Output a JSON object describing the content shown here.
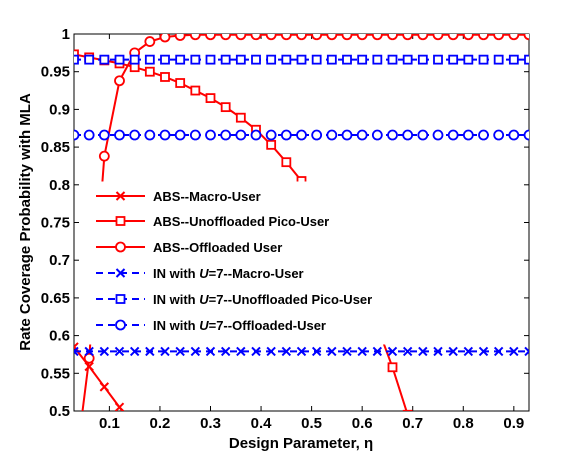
{
  "chart_data": {
    "type": "line",
    "title": "",
    "xlabel": "Design Parameter, η",
    "ylabel": "Rate Coverage Probability with MLA",
    "xlim": [
      0.03,
      0.93
    ],
    "ylim": [
      0.5,
      1.0
    ],
    "xticks": [
      "0.1",
      "0.2",
      "0.3",
      "0.4",
      "0.5",
      "0.6",
      "0.7",
      "0.8",
      "0.9"
    ],
    "yticks": [
      "0.5",
      "0.55",
      "0.6",
      "0.65",
      "0.7",
      "0.75",
      "0.8",
      "0.85",
      "0.9",
      "0.95",
      "1"
    ],
    "grid": false,
    "legend_position": "left",
    "colors": {
      "abs": "#ff0000",
      "in": "#0000ff"
    },
    "x_markers": [
      0.03,
      0.06,
      0.09,
      0.12,
      0.15,
      0.18,
      0.21,
      0.24,
      0.27,
      0.3,
      0.33,
      0.36,
      0.39,
      0.42,
      0.45,
      0.48,
      0.51,
      0.54,
      0.57,
      0.6,
      0.63,
      0.66,
      0.69,
      0.72,
      0.75,
      0.78,
      0.81,
      0.84,
      0.87,
      0.9,
      0.93
    ],
    "series": [
      {
        "name": "ABS--Macro-User",
        "color": "#ff0000",
        "line": "solid",
        "marker": "x",
        "x": [
          0.03,
          0.06,
          0.09,
          0.12,
          0.15
        ],
        "y": [
          0.585,
          0.559,
          0.532,
          0.505,
          0.478
        ]
      },
      {
        "name": "ABS--Unoffloaded Pico-User",
        "color": "#ff0000",
        "line": "solid",
        "marker": "square",
        "x": [
          0.03,
          0.06,
          0.09,
          0.12,
          0.15,
          0.18,
          0.21,
          0.24,
          0.27,
          0.3,
          0.33,
          0.36,
          0.39,
          0.42,
          0.45,
          0.48,
          0.51,
          0.54,
          0.57,
          0.6,
          0.63,
          0.66,
          0.69
        ],
        "y": [
          0.973,
          0.969,
          0.965,
          0.961,
          0.956,
          0.95,
          0.943,
          0.935,
          0.925,
          0.915,
          0.903,
          0.889,
          0.873,
          0.853,
          0.83,
          0.805,
          0.775,
          0.742,
          0.704,
          0.661,
          0.612,
          0.558,
          0.495
        ]
      },
      {
        "name": "ABS--Offloaded User",
        "color": "#ff0000",
        "line": "solid",
        "marker": "circle",
        "x": [
          0.045,
          0.06,
          0.09,
          0.12,
          0.15,
          0.18,
          0.21,
          0.24,
          0.27,
          0.3,
          0.33,
          0.36,
          0.39,
          0.42,
          0.45,
          0.48,
          0.51,
          0.54,
          0.57,
          0.6,
          0.63,
          0.66,
          0.69,
          0.72,
          0.75,
          0.78,
          0.81,
          0.84,
          0.87,
          0.9,
          0.93
        ],
        "y": [
          0.49,
          0.57,
          0.838,
          0.938,
          0.975,
          0.99,
          0.996,
          0.998,
          0.999,
          0.999,
          0.999,
          0.999,
          0.999,
          0.999,
          0.999,
          0.999,
          0.999,
          0.999,
          0.999,
          0.999,
          0.999,
          0.999,
          0.999,
          0.999,
          0.999,
          0.999,
          0.999,
          0.999,
          0.999,
          0.999,
          0.999
        ]
      },
      {
        "name": "IN with U=7--Macro-User",
        "color": "#0000ff",
        "line": "dashed",
        "marker": "x",
        "constant": 0.579
      },
      {
        "name": "IN with U=7--Unoffloaded Pico-User",
        "color": "#0000ff",
        "line": "dashed",
        "marker": "square",
        "constant": 0.966
      },
      {
        "name": "IN with U=7--Offloaded-User",
        "color": "#0000ff",
        "line": "dashed",
        "marker": "circle",
        "constant": 0.866
      }
    ]
  },
  "legend": [
    {
      "prefix": "ABS--Macro-User",
      "var": "",
      "suffix": ""
    },
    {
      "prefix": "ABS--Unoffloaded Pico-User",
      "var": "",
      "suffix": ""
    },
    {
      "prefix": "ABS--Offloaded User",
      "var": "",
      "suffix": ""
    },
    {
      "prefix": "IN with ",
      "var": "U",
      "suffix": "=7--Macro-User"
    },
    {
      "prefix": "IN with ",
      "var": "U",
      "suffix": "=7--Unoffloaded Pico-User"
    },
    {
      "prefix": "IN with ",
      "var": "U",
      "suffix": "=7--Offloaded-User"
    }
  ]
}
